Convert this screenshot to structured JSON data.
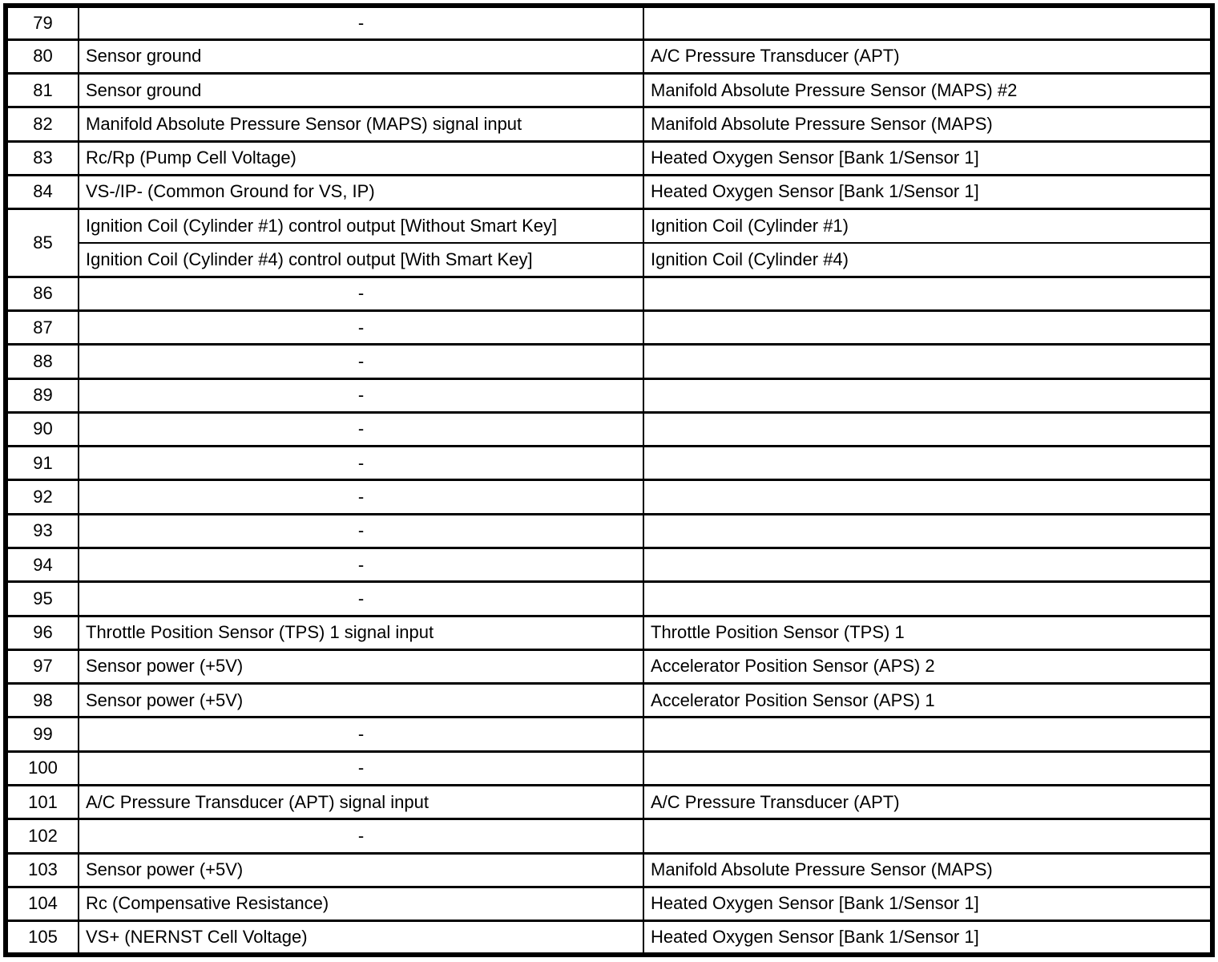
{
  "table": {
    "rows": [
      {
        "pin": "79",
        "desc": "-",
        "desc_align": "center",
        "connected": ""
      },
      {
        "pin": "80",
        "desc": "Sensor ground",
        "connected": "A/C Pressure Transducer (APT)"
      },
      {
        "pin": "81",
        "desc": "Sensor ground",
        "connected": "Manifold Absolute Pressure Sensor (MAPS) #2"
      },
      {
        "pin": "82",
        "desc": "Manifold Absolute Pressure Sensor (MAPS) signal input",
        "connected": "Manifold Absolute Pressure Sensor (MAPS)"
      },
      {
        "pin": "83",
        "desc": "Rc/Rp (Pump Cell Voltage)",
        "connected": "Heated Oxygen Sensor [Bank 1/Sensor 1]"
      },
      {
        "pin": "84",
        "desc": "VS-/IP- (Common Ground for VS, IP)",
        "connected": "Heated Oxygen Sensor [Bank 1/Sensor 1]"
      },
      {
        "pin": "85",
        "pin_rowspan": 2,
        "divider": "thin-bottom",
        "desc": "Ignition Coil (Cylinder #1) control output [Without Smart Key]",
        "connected": "Ignition Coil (Cylinder #1)"
      },
      {
        "pin": null,
        "divider": "thin-top",
        "desc": "Ignition Coil (Cylinder #4) control output [With Smart Key]",
        "connected": "Ignition Coil (Cylinder #4)"
      },
      {
        "pin": "86",
        "desc": "-",
        "desc_align": "center",
        "connected": ""
      },
      {
        "pin": "87",
        "desc": "-",
        "desc_align": "center",
        "connected": ""
      },
      {
        "pin": "88",
        "desc": "-",
        "desc_align": "center",
        "connected": ""
      },
      {
        "pin": "89",
        "desc": "-",
        "desc_align": "center",
        "connected": ""
      },
      {
        "pin": "90",
        "desc": "-",
        "desc_align": "center",
        "connected": ""
      },
      {
        "pin": "91",
        "desc": "-",
        "desc_align": "center",
        "connected": ""
      },
      {
        "pin": "92",
        "desc": "-",
        "desc_align": "center",
        "connected": ""
      },
      {
        "pin": "93",
        "desc": "-",
        "desc_align": "center",
        "connected": ""
      },
      {
        "pin": "94",
        "desc": "-",
        "desc_align": "center",
        "connected": ""
      },
      {
        "pin": "95",
        "desc": "-",
        "desc_align": "center",
        "connected": ""
      },
      {
        "pin": "96",
        "desc": "Throttle Position Sensor (TPS) 1 signal input",
        "connected": "Throttle Position Sensor (TPS) 1"
      },
      {
        "pin": "97",
        "desc": "Sensor power (+5V)",
        "connected": "Accelerator Position Sensor (APS) 2"
      },
      {
        "pin": "98",
        "desc": "Sensor power (+5V)",
        "connected": "Accelerator Position Sensor (APS) 1"
      },
      {
        "pin": "99",
        "desc": "-",
        "desc_align": "center",
        "connected": ""
      },
      {
        "pin": "100",
        "desc": "-",
        "desc_align": "center",
        "connected": ""
      },
      {
        "pin": "101",
        "desc": "A/C Pressure Transducer (APT) signal input",
        "connected": "A/C Pressure Transducer (APT)"
      },
      {
        "pin": "102",
        "desc": "-",
        "desc_align": "center",
        "connected": ""
      },
      {
        "pin": "103",
        "desc": "Sensor power (+5V)",
        "connected": "Manifold Absolute Pressure Sensor (MAPS)"
      },
      {
        "pin": "104",
        "desc": "Rc (Compensative Resistance)",
        "connected": "Heated Oxygen Sensor [Bank 1/Sensor 1]"
      },
      {
        "pin": "105",
        "desc": "VS+ (NERNST Cell Voltage)",
        "connected": "Heated Oxygen Sensor [Bank 1/Sensor 1]"
      }
    ]
  }
}
